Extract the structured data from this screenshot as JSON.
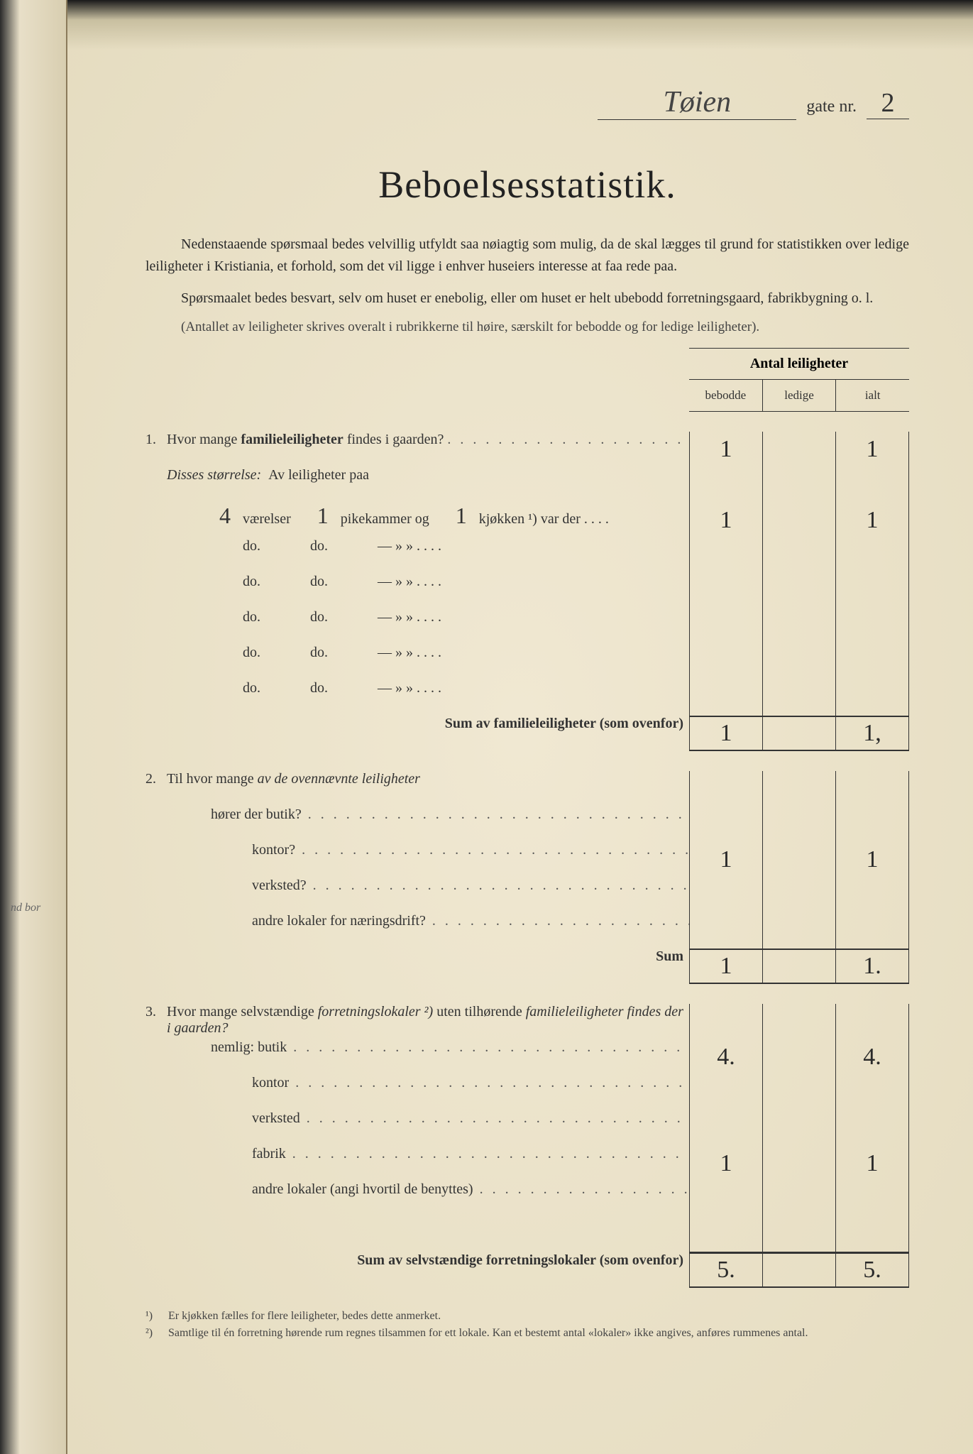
{
  "header": {
    "street_name": "Tøien",
    "gate_label": "gate nr.",
    "gate_nr": "2"
  },
  "title": "Beboelsesstatistik.",
  "intro": {
    "p1": "Nedenstaaende spørsmaal bedes velvillig utfyldt saa nøiagtig som mulig, da de skal lægges til grund for statistikken over ledige leiligheter i Kristiania, et forhold, som det vil ligge i enhver huseiers interesse at faa rede paa.",
    "p2": "Spørsmaalet bedes besvart, selv om huset er enebolig, eller om huset er helt ubebodd forretningsgaard, fabrikbygning o. l.",
    "paren": "(Antallet av leiligheter skrives overalt i rubrikkerne til høire, særskilt for bebodde og for ledige leiligheter)."
  },
  "columns": {
    "title": "Antal leiligheter",
    "c1": "bebodde",
    "c2": "ledige",
    "c3": "ialt"
  },
  "q1": {
    "num": "1.",
    "text_a": "Hvor mange ",
    "text_b": "familieleiligheter",
    "text_c": " findes i gaarden?",
    "bebodde": "1",
    "ledige": "",
    "ialt": "1",
    "disses": "Disses størrelse:",
    "av_line": "Av leiligheter paa",
    "room_rows": [
      {
        "v": "4",
        "vlbl": "værelser",
        "p": "1",
        "plbl": "pikekammer og",
        "k": "1",
        "klbl": "kjøkken ¹) var der",
        "beb": "1",
        "led": "",
        "ialt": "1"
      },
      {
        "v": "",
        "vlbl": "do.",
        "p": "",
        "plbl": "do.",
        "k": "",
        "klbl": "—        »    »",
        "beb": "",
        "led": "",
        "ialt": ""
      },
      {
        "v": "",
        "vlbl": "do.",
        "p": "",
        "plbl": "do.",
        "k": "",
        "klbl": "—        »    »",
        "beb": "",
        "led": "",
        "ialt": ""
      },
      {
        "v": "",
        "vlbl": "do.",
        "p": "",
        "plbl": "do.",
        "k": "",
        "klbl": "—        »    »",
        "beb": "",
        "led": "",
        "ialt": ""
      },
      {
        "v": "",
        "vlbl": "do.",
        "p": "",
        "plbl": "do.",
        "k": "",
        "klbl": "—        »    »",
        "beb": "",
        "led": "",
        "ialt": ""
      },
      {
        "v": "",
        "vlbl": "do.",
        "p": "",
        "plbl": "do.",
        "k": "",
        "klbl": "—        »    »",
        "beb": "",
        "led": "",
        "ialt": ""
      }
    ],
    "sum_label": "Sum av familieleiligheter",
    "sum_note": "(som ovenfor)",
    "sum_beb": "1",
    "sum_led": "",
    "sum_ialt": "1,"
  },
  "q2": {
    "num": "2.",
    "lead": "Til hvor mange ",
    "lead_i": "av de ovennævnte leiligheter",
    "rows": [
      {
        "label": "hører der butik?",
        "beb": "",
        "led": "",
        "ialt": ""
      },
      {
        "label": "kontor?",
        "beb": "1",
        "led": "",
        "ialt": "1"
      },
      {
        "label": "verksted?",
        "beb": "",
        "led": "",
        "ialt": ""
      },
      {
        "label": "andre lokaler for næringsdrift?",
        "beb": "",
        "led": "",
        "ialt": ""
      }
    ],
    "sum_label": "Sum",
    "sum_beb": "1",
    "sum_led": "",
    "sum_ialt": "1."
  },
  "q3": {
    "num": "3.",
    "lead_a": "Hvor mange selvstændige ",
    "lead_i": "forretningslokaler ²)",
    "lead_b": " uten tilhørende ",
    "lead_i2": "familieleiligheter findes der i gaarden?",
    "nemlig": "nemlig:",
    "rows": [
      {
        "label": "butik",
        "beb": "4.",
        "led": "",
        "ialt": "4."
      },
      {
        "label": "kontor",
        "beb": "",
        "led": "",
        "ialt": ""
      },
      {
        "label": "verksted",
        "beb": "",
        "led": "",
        "ialt": ""
      },
      {
        "label": "fabrik",
        "beb": "1",
        "led": "",
        "ialt": "1"
      },
      {
        "label": "andre lokaler (angi hvortil de benyttes)",
        "beb": "",
        "led": "",
        "ialt": ""
      }
    ],
    "sum_label": "Sum av selvstændige forretningslokaler",
    "sum_note": "(som ovenfor)",
    "sum_beb": "5.",
    "sum_led": "",
    "sum_ialt": "5."
  },
  "footnotes": {
    "f1_num": "¹)",
    "f1": "Er kjøkken fælles for flere leiligheter, bedes dette anmerket.",
    "f2_num": "²)",
    "f2": "Samtlige til én forretning hørende rum regnes tilsammen for ett lokale. Kan et bestemt antal «lokaler» ikke angives, anføres rummenes antal."
  },
  "margin": {
    "nd_bor": "nd bor"
  }
}
